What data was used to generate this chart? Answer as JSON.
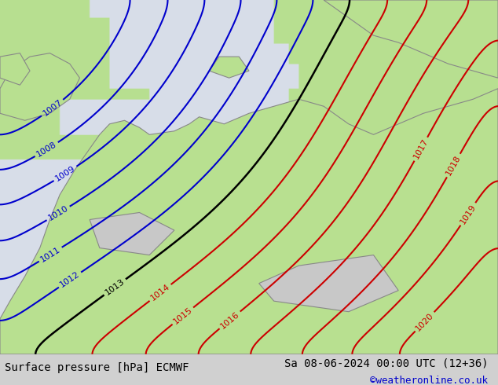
{
  "title_left": "Surface pressure [hPa] ECMWF",
  "title_right": "Sa 08-06-2024 00:00 UTC (12+36)",
  "credit": "©weatheronline.co.uk",
  "bg_color": "#d0d0d0",
  "land_color_green": "#b8e090",
  "land_color_gray": "#c8c8c8",
  "sea_color": "#d8dde8",
  "blue_contour_color": "#0000cc",
  "red_contour_color": "#cc0000",
  "black_contour_color": "#000000",
  "blue_levels": [
    1007,
    1008,
    1009,
    1010,
    1011,
    1012
  ],
  "red_levels": [
    1014,
    1015,
    1016,
    1017,
    1018,
    1019,
    1020
  ],
  "black_levels": [
    1013
  ],
  "figsize": [
    6.34,
    4.9
  ],
  "dpi": 100,
  "bottom_bar_height": 0.08,
  "bottom_bar_color": "#d0d0d0"
}
